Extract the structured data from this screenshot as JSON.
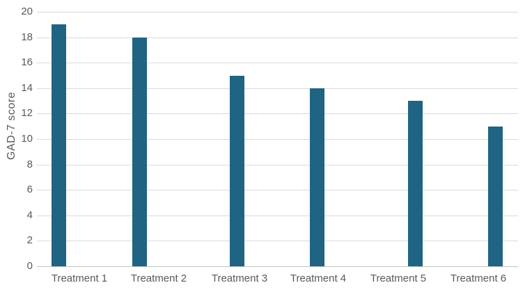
{
  "chart_data": {
    "type": "bar",
    "title": "",
    "categories": [
      "Treatment 1",
      "Treatment 2",
      "Treatment 3",
      "Treatment 4",
      "Treatment 5",
      "Treatment 6"
    ],
    "values": [
      19,
      18,
      15,
      14,
      13,
      11
    ],
    "xlabel": "",
    "ylabel": "GAD-7 score",
    "ylim": [
      0,
      20
    ],
    "ytick_step": 2,
    "grid": "horizontal",
    "legend": "none",
    "colors": {
      "bar": "#1f6482",
      "gridline": "#d9d9d9",
      "axis_line": "#c3c3c3",
      "text": "#595959"
    }
  }
}
